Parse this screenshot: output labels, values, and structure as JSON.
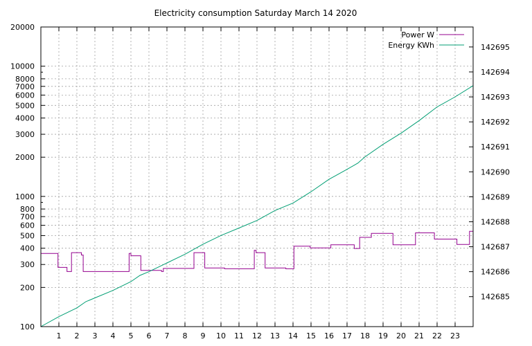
{
  "chart_data": {
    "type": "line",
    "title": "Electricity consumption Saturday March 14 2020",
    "xlabel": "",
    "ylabel": "",
    "xlim": [
      0,
      24
    ],
    "x_ticks": [
      1,
      2,
      3,
      4,
      5,
      6,
      7,
      8,
      9,
      10,
      11,
      12,
      13,
      14,
      15,
      16,
      17,
      18,
      19,
      20,
      21,
      22,
      23
    ],
    "grid": true,
    "legend_position": "top-right",
    "y_axis": {
      "scale": "log",
      "ylim": [
        100,
        20000
      ],
      "ticks": [
        100,
        200,
        300,
        400,
        500,
        600,
        700,
        800,
        1000,
        2000,
        3000,
        4000,
        5000,
        6000,
        7000,
        8000,
        10000,
        20000
      ]
    },
    "y2_axis": {
      "scale": "linear",
      "ylim": [
        142683.8,
        142695.8
      ],
      "ticks": [
        142685,
        142686,
        142687,
        142688,
        142689,
        142690,
        142691,
        142692,
        142693,
        142694,
        142695
      ]
    },
    "series": [
      {
        "name": "Power W",
        "axis": "y",
        "color": "#94008f",
        "step": true,
        "points": [
          [
            0,
            365
          ],
          [
            0.95,
            365
          ],
          [
            0.95,
            285
          ],
          [
            1.45,
            285
          ],
          [
            1.45,
            265
          ],
          [
            1.7,
            265
          ],
          [
            1.7,
            370
          ],
          [
            2.25,
            370
          ],
          [
            2.25,
            355
          ],
          [
            2.35,
            355
          ],
          [
            2.35,
            265
          ],
          [
            4.9,
            265
          ],
          [
            4.9,
            365
          ],
          [
            5.0,
            365
          ],
          [
            5.0,
            350
          ],
          [
            5.55,
            350
          ],
          [
            5.55,
            270
          ],
          [
            6.7,
            270
          ],
          [
            6.7,
            265
          ],
          [
            6.8,
            265
          ],
          [
            6.8,
            280
          ],
          [
            8.5,
            280
          ],
          [
            8.5,
            370
          ],
          [
            9.1,
            370
          ],
          [
            9.1,
            282
          ],
          [
            10.2,
            282
          ],
          [
            10.2,
            278
          ],
          [
            11.85,
            278
          ],
          [
            11.85,
            385
          ],
          [
            11.95,
            385
          ],
          [
            11.95,
            370
          ],
          [
            12.45,
            370
          ],
          [
            12.45,
            282
          ],
          [
            13.6,
            282
          ],
          [
            13.6,
            278
          ],
          [
            14.05,
            278
          ],
          [
            14.05,
            415
          ],
          [
            14.95,
            415
          ],
          [
            14.95,
            402
          ],
          [
            16.1,
            402
          ],
          [
            16.1,
            425
          ],
          [
            17.4,
            425
          ],
          [
            17.4,
            398
          ],
          [
            17.7,
            398
          ],
          [
            17.7,
            485
          ],
          [
            18.35,
            485
          ],
          [
            18.35,
            520
          ],
          [
            19.55,
            520
          ],
          [
            19.55,
            425
          ],
          [
            20.8,
            425
          ],
          [
            20.8,
            525
          ],
          [
            21.85,
            525
          ],
          [
            21.85,
            470
          ],
          [
            23.1,
            470
          ],
          [
            23.1,
            428
          ],
          [
            23.8,
            428
          ],
          [
            23.8,
            540
          ],
          [
            24,
            540
          ]
        ]
      },
      {
        "name": "Energy KWh",
        "axis": "y2",
        "color": "#009e73",
        "step": false,
        "points": [
          [
            0,
            142683.8
          ],
          [
            1,
            142684.2
          ],
          [
            2,
            142684.55
          ],
          [
            2.5,
            142684.8
          ],
          [
            3,
            142684.95
          ],
          [
            4,
            142685.25
          ],
          [
            5,
            142685.6
          ],
          [
            5.5,
            142685.85
          ],
          [
            6,
            142686.0
          ],
          [
            7,
            142686.35
          ],
          [
            8,
            142686.7
          ],
          [
            9,
            142687.1
          ],
          [
            10,
            142687.45
          ],
          [
            11,
            142687.75
          ],
          [
            12,
            142688.05
          ],
          [
            13,
            142688.45
          ],
          [
            14,
            142688.75
          ],
          [
            15,
            142689.2
          ],
          [
            16,
            142689.7
          ],
          [
            17,
            142690.1
          ],
          [
            17.6,
            142690.35
          ],
          [
            18,
            142690.6
          ],
          [
            19,
            142691.1
          ],
          [
            20,
            142691.55
          ],
          [
            21,
            142692.05
          ],
          [
            22,
            142692.6
          ],
          [
            23,
            142693.0
          ],
          [
            24,
            142693.45
          ]
        ]
      }
    ]
  }
}
